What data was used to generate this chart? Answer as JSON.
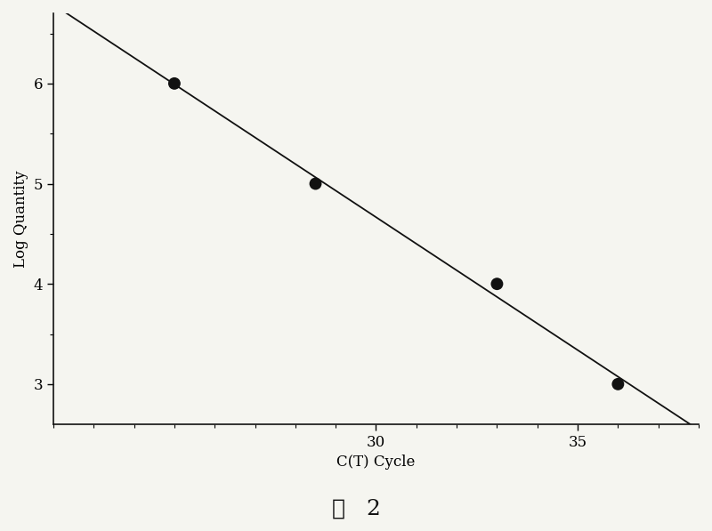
{
  "x_data": [
    25,
    28.5,
    33,
    36
  ],
  "y_data": [
    6,
    5,
    4,
    3
  ],
  "line_x_start": 21.5,
  "line_x_end": 38.5,
  "xlabel": "C(T) Cycle",
  "ylabel": "Log Quantity",
  "xlim": [
    22,
    38
  ],
  "ylim": [
    2.6,
    6.7
  ],
  "xticks_major": [
    30,
    35
  ],
  "xticks_minor_step": 1,
  "yticks_major": [
    3,
    4,
    5,
    6
  ],
  "yticks_minor_step": 0.5,
  "dot_color": "#111111",
  "dot_size": 100,
  "line_color": "#111111",
  "line_width": 1.3,
  "background_color": "#f5f5f0",
  "caption": "图   2",
  "caption_fontsize": 18,
  "xlabel_fontsize": 12,
  "ylabel_fontsize": 12,
  "tick_fontsize": 12
}
